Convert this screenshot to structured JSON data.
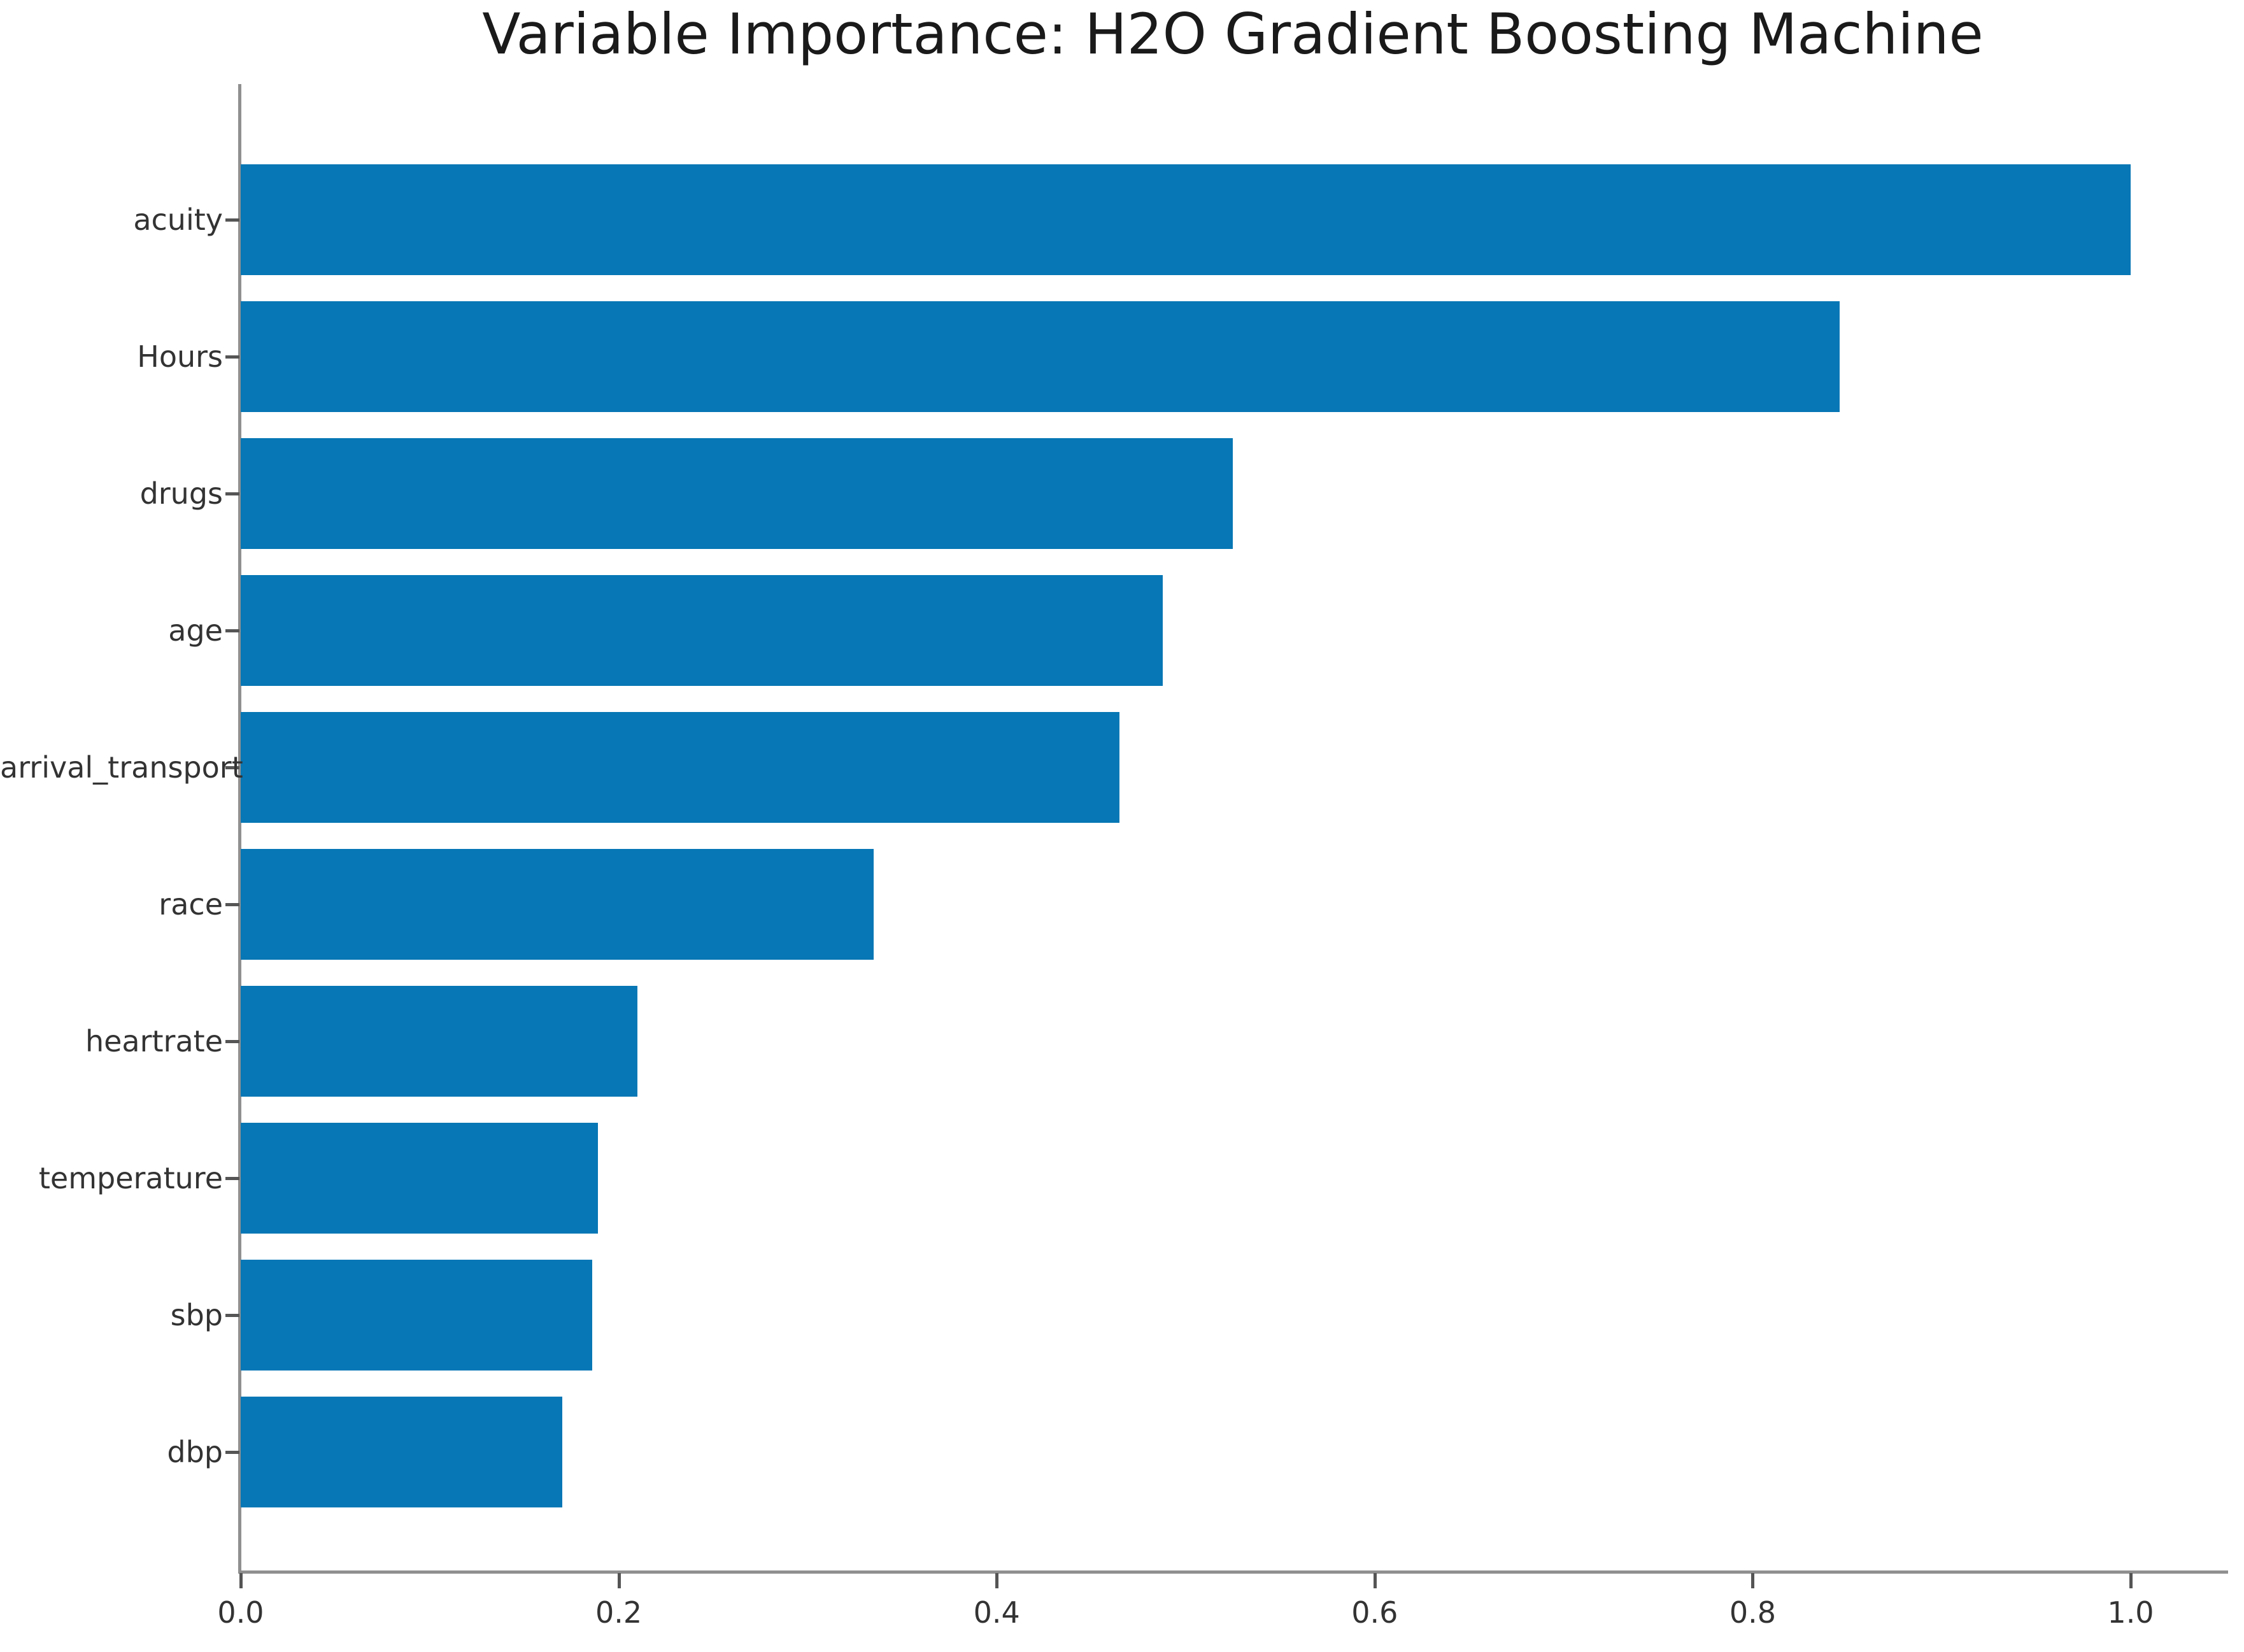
{
  "title": "Variable Importance: H2O Gradient Boosting Machine",
  "chart_data": {
    "type": "bar",
    "orientation": "horizontal",
    "title": "Variable Importance: H2O Gradient Boosting Machine",
    "categories": [
      "acuity",
      "Hours",
      "drugs",
      "age",
      "arrival_transport",
      "race",
      "heartrate",
      "temperature",
      "sbp",
      "dbp"
    ],
    "values": [
      1.0,
      0.846,
      0.525,
      0.488,
      0.465,
      0.335,
      0.21,
      0.189,
      0.186,
      0.17
    ],
    "xlabel": "",
    "ylabel": "",
    "xlim": [
      0,
      1.05
    ],
    "x_ticks": [
      "0.0",
      "0.2",
      "0.4",
      "0.6",
      "0.8",
      "1.0"
    ],
    "x_tick_values": [
      0.0,
      0.2,
      0.4,
      0.6,
      0.8,
      1.0
    ],
    "grid": false,
    "legend_position": "none",
    "bar_color": "#0777b5",
    "axis_color": "#909090",
    "tick_text_color": "#333333",
    "title_color": "#1a1a1a",
    "background_color": "#ffffff"
  }
}
